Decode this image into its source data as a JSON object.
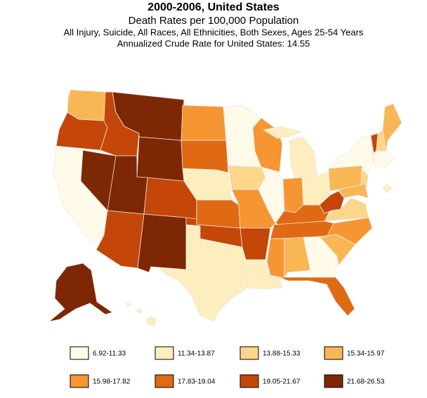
{
  "header": {
    "title": "2000-2006, United States",
    "subtitle": "Death Rates per 100,000 Population",
    "line1": "All Injury, Suicide, All Races, All Ethnicities, Both Sexes, Ages 25-54 Years",
    "line2": "Annualized Crude Rate for United States: 14.55"
  },
  "legend": {
    "items": [
      {
        "label": "6.92-11.33",
        "color": "#fffbe8"
      },
      {
        "label": "11.34-13.87",
        "color": "#fdeebf"
      },
      {
        "label": "13.88-15.33",
        "color": "#fcd68a"
      },
      {
        "label": "15.34-15.97",
        "color": "#f9b654"
      },
      {
        "label": "15.98-17.82",
        "color": "#f59632"
      },
      {
        "label": "17.83-19.04",
        "color": "#e06a14"
      },
      {
        "label": "19.05-21.67",
        "color": "#c44608"
      },
      {
        "label": "21.68-26.53",
        "color": "#7e2705"
      }
    ]
  }
}
